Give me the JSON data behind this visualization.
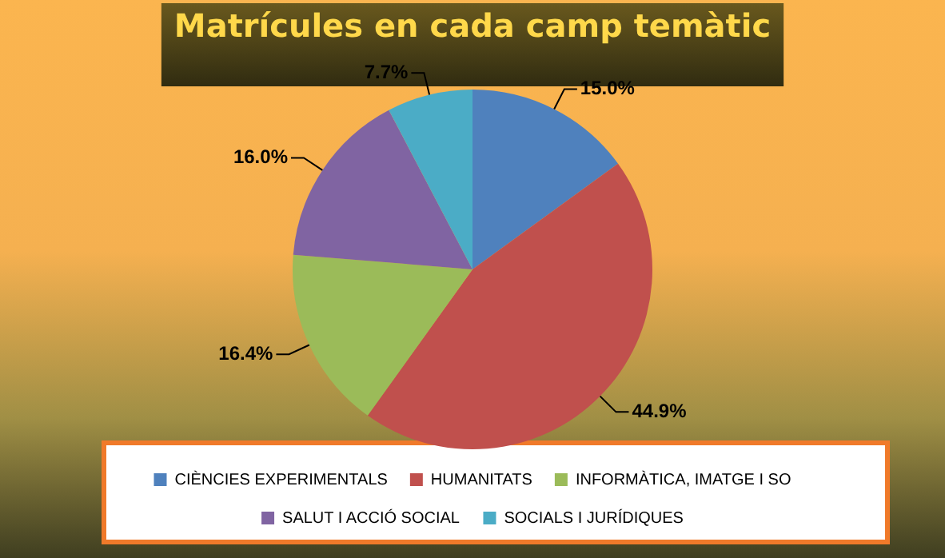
{
  "chart_data": {
    "type": "pie",
    "title": "Matrícules en cada camp temàtic",
    "categories": [
      "CIÈNCIES EXPERIMENTALS",
      "HUMANITATS",
      "INFORMÀTICA, IMATGE I SO",
      "SALUT I ACCIÓ SOCIAL",
      "SOCIALS I JURÍDIQUES"
    ],
    "values": [
      15.0,
      44.9,
      16.4,
      16.0,
      7.7
    ],
    "colors": [
      "#4f81bd",
      "#c0504d",
      "#9bbb59",
      "#8064a2",
      "#4bacc6"
    ],
    "value_labels": [
      "15.0%",
      "44.9%",
      "16.4%",
      "16.0%",
      "7.7%"
    ],
    "legend": "bottom"
  }
}
